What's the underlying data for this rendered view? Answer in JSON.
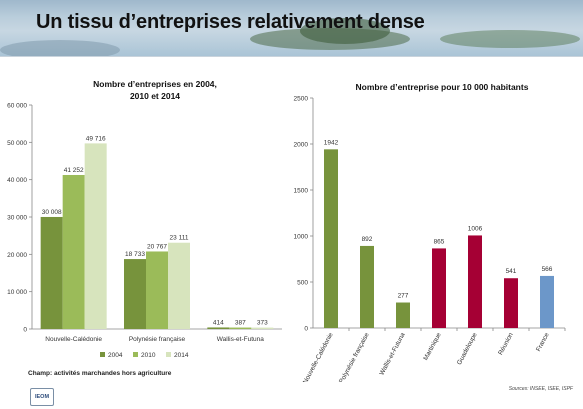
{
  "page": {
    "title": "Un tissu d’entreprises relativement dense",
    "footnote": "Champ: activités marchandes hors agriculture",
    "sources": "Sources: INSEE, ISEE, ISPF",
    "logo_text": "IEOM"
  },
  "chart_data": [
    {
      "type": "bar",
      "title": "Nombre d’entreprises en 2004, 2010 et 2014",
      "title_lines": [
        "Nombre d’entreprises en 2004,",
        "2010 et 2014"
      ],
      "categories": [
        "Nouvelle-Calédonie",
        "Polynésie française",
        "Wallis-et-Futuna"
      ],
      "series": [
        {
          "name": "2004",
          "values": [
            30008,
            18733,
            414
          ],
          "labels": [
            "30 008",
            "18 733",
            "414"
          ],
          "color": "#77933c"
        },
        {
          "name": "2010",
          "values": [
            41252,
            20767,
            387
          ],
          "labels": [
            "41 252",
            "20 767",
            "387"
          ],
          "color": "#9bbb59"
        },
        {
          "name": "2014",
          "values": [
            49716,
            23111,
            373
          ],
          "labels": [
            "49 716",
            "23 111",
            "373"
          ],
          "color": "#d7e4bd"
        }
      ],
      "ylim": [
        0,
        60000
      ],
      "yticks": [
        0,
        10000,
        20000,
        30000,
        40000,
        50000,
        60000
      ],
      "yticklabels": [
        "0",
        "10 000",
        "20 000",
        "30 000",
        "40 000",
        "50 000",
        "60 000"
      ],
      "legend_position": "bottom",
      "grid": false
    },
    {
      "type": "bar",
      "title": "Nombre d’entreprise pour 10 000 habitants",
      "categories": [
        "Nouvelle-Calédonie",
        "Polynésie française",
        "Wallis-et-Futuna",
        "Martinique",
        "Guadeloupe",
        "Réunion",
        "France"
      ],
      "values": [
        1942,
        892,
        277,
        865,
        1006,
        541,
        566
      ],
      "colors": [
        "#77933c",
        "#77933c",
        "#77933c",
        "#a50034",
        "#a50034",
        "#a50034",
        "#6c97c9"
      ],
      "ylim": [
        0,
        2500
      ],
      "yticks": [
        0,
        500,
        1000,
        1500,
        2000,
        2500
      ],
      "yticklabels": [
        "0",
        "500",
        "1000",
        "1500",
        "2000",
        "2500"
      ],
      "grid": false
    }
  ]
}
